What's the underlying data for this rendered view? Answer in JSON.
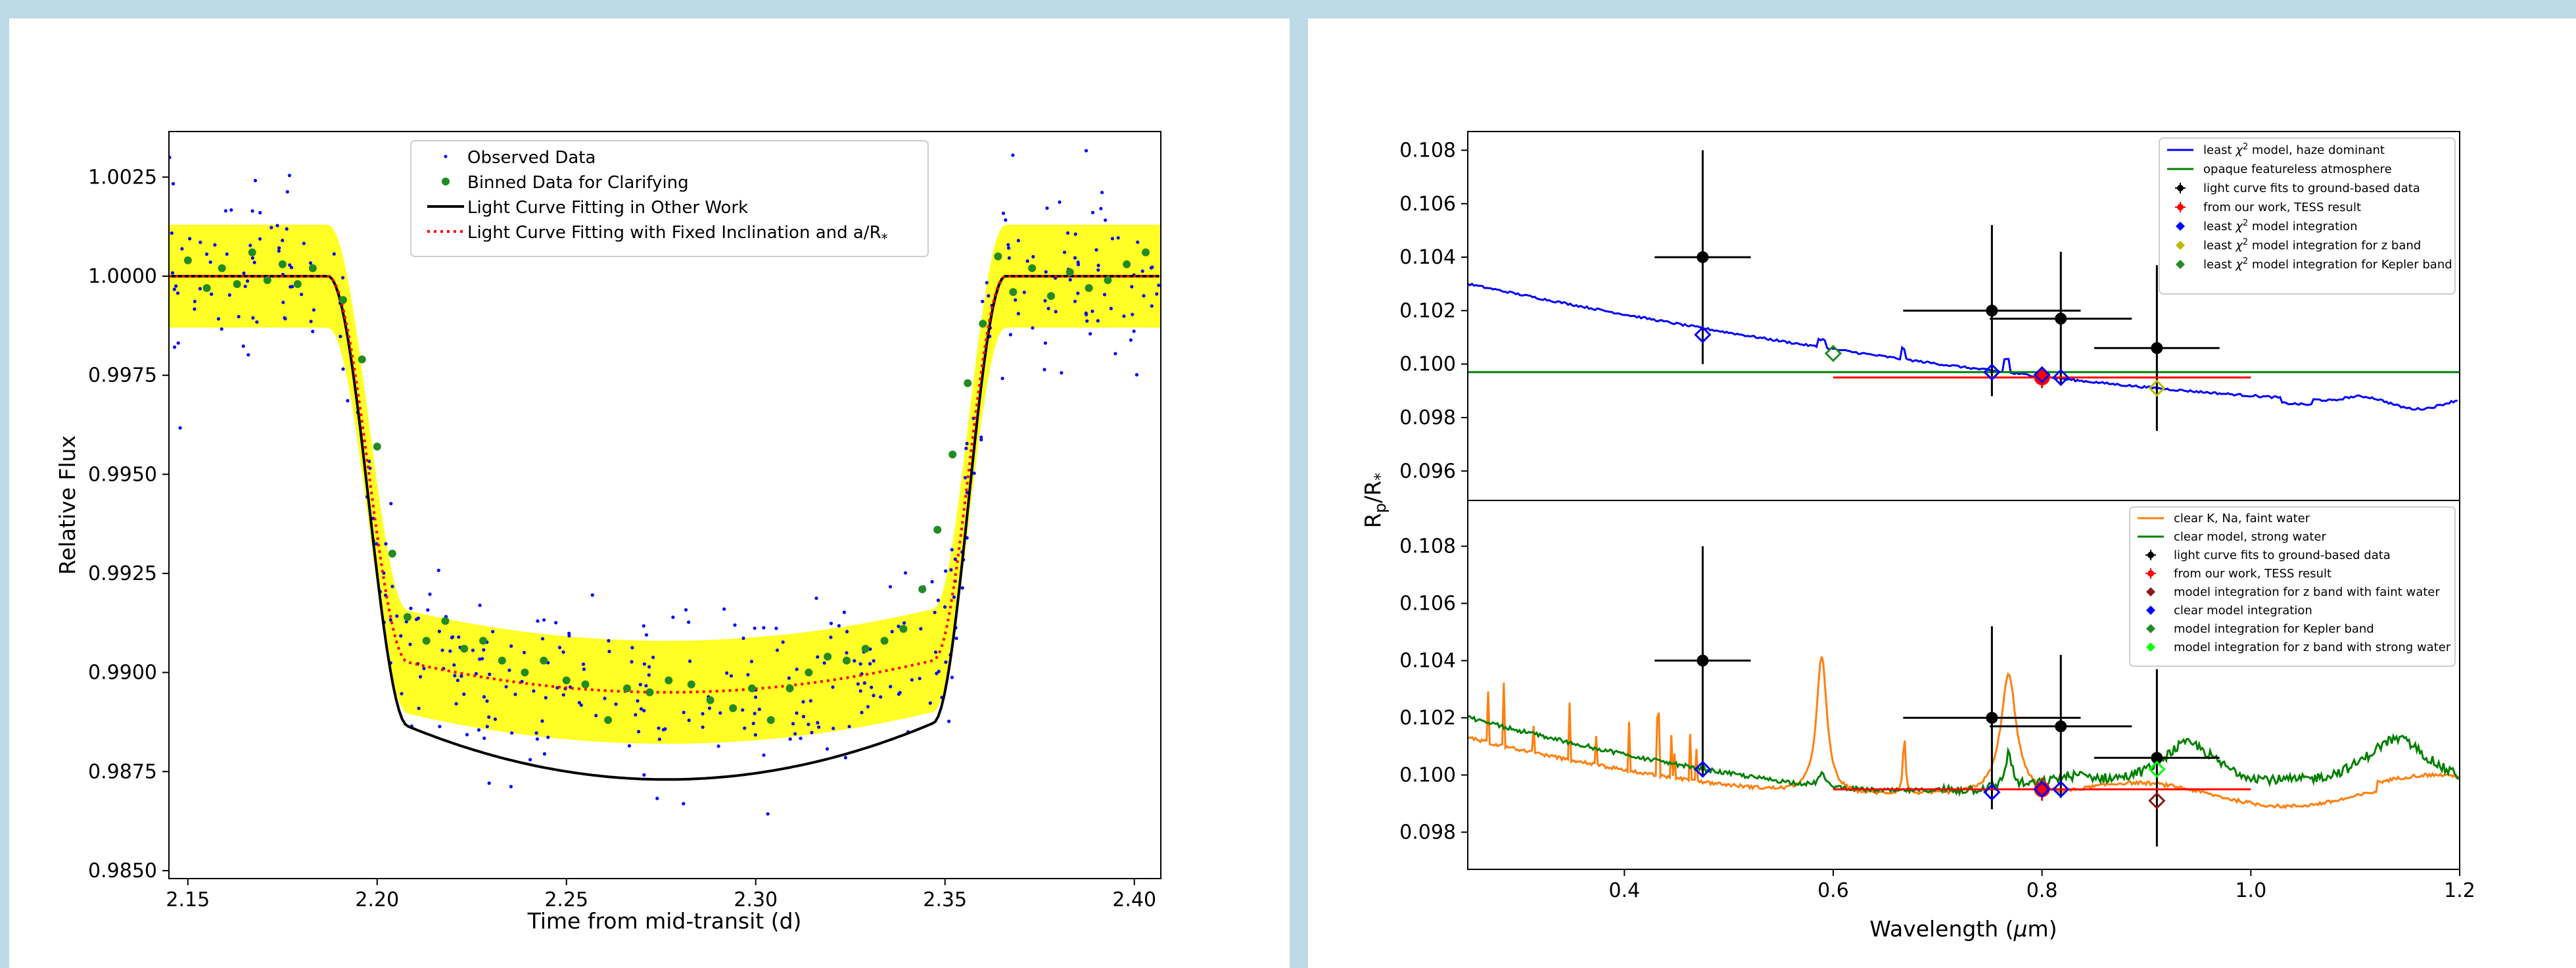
{
  "chart_data": [
    {
      "type": "scatter",
      "xlabel": "Time from mid-transit (d)",
      "ylabel": "Relative Flux",
      "xlim": [
        2.145,
        2.407
      ],
      "ylim": [
        0.9848,
        1.00365
      ],
      "xticks": [
        "2.15",
        "2.20",
        "2.25",
        "2.30",
        "2.35",
        "2.40"
      ],
      "xtick_values": [
        2.15,
        2.2,
        2.25,
        2.3,
        2.35,
        2.4
      ],
      "yticks": [
        "0.9850",
        "0.9875",
        "0.9900",
        "0.9925",
        "0.9950",
        "0.9975",
        "1.0000",
        "1.0025"
      ],
      "ytick_values": [
        0.985,
        0.9875,
        0.99,
        0.9925,
        0.995,
        0.9975,
        1.0,
        1.0025
      ],
      "legend_position": "top-center",
      "legend": [
        {
          "label": "Observed Data",
          "style": "blue-dot"
        },
        {
          "label": "Binned Data for Clarifying",
          "style": "green-dot"
        },
        {
          "label": "Light Curve Fitting in Other Work",
          "style": "black-line"
        },
        {
          "label": "Light Curve Fitting with Fixed Inclination and a/R",
          "sub": "*",
          "style": "red-dotted"
        }
      ],
      "transit": {
        "t1": 2.187,
        "t2": 2.208,
        "t3": 2.347,
        "t4": 2.366,
        "tmid": 2.2765,
        "depth_other": 0.0127,
        "depth_fixed": 0.0105,
        "curve_other": 0.0023,
        "curve_fixed": 0.0013
      },
      "band_halfwidth": 0.0013,
      "observed_points": 400,
      "observed_scatter": 0.0011,
      "binned_points": [
        [
          2.15,
          1.0004
        ],
        [
          2.155,
          0.9997
        ],
        [
          2.159,
          1.0002
        ],
        [
          2.163,
          0.9998
        ],
        [
          2.167,
          1.0006
        ],
        [
          2.171,
          0.9999
        ],
        [
          2.175,
          1.0003
        ],
        [
          2.179,
          0.9998
        ],
        [
          2.183,
          1.0002
        ],
        [
          2.191,
          0.9994
        ],
        [
          2.196,
          0.9979
        ],
        [
          2.2,
          0.9957
        ],
        [
          2.204,
          0.993
        ],
        [
          2.208,
          0.9914
        ],
        [
          2.213,
          0.9908
        ],
        [
          2.218,
          0.9913
        ],
        [
          2.223,
          0.9906
        ],
        [
          2.228,
          0.9908
        ],
        [
          2.233,
          0.9903
        ],
        [
          2.239,
          0.99
        ],
        [
          2.244,
          0.9903
        ],
        [
          2.25,
          0.9898
        ],
        [
          2.255,
          0.9897
        ],
        [
          2.261,
          0.9888
        ],
        [
          2.266,
          0.9896
        ],
        [
          2.272,
          0.9895
        ],
        [
          2.277,
          0.9898
        ],
        [
          2.283,
          0.9897
        ],
        [
          2.288,
          0.9893
        ],
        [
          2.294,
          0.9891
        ],
        [
          2.299,
          0.9896
        ],
        [
          2.304,
          0.9888
        ],
        [
          2.309,
          0.9896
        ],
        [
          2.314,
          0.99
        ],
        [
          2.319,
          0.9904
        ],
        [
          2.324,
          0.9903
        ],
        [
          2.329,
          0.9906
        ],
        [
          2.334,
          0.9908
        ],
        [
          2.339,
          0.9911
        ],
        [
          2.344,
          0.9921
        ],
        [
          2.348,
          0.9936
        ],
        [
          2.352,
          0.9955
        ],
        [
          2.356,
          0.9973
        ],
        [
          2.36,
          0.9988
        ],
        [
          2.364,
          1.0005
        ],
        [
          2.368,
          0.9996
        ],
        [
          2.373,
          1.0002
        ],
        [
          2.378,
          0.9995
        ],
        [
          2.383,
          1.0001
        ],
        [
          2.388,
          0.9997
        ],
        [
          2.393,
          0.9999
        ],
        [
          2.398,
          1.0003
        ],
        [
          2.403,
          1.0006
        ]
      ]
    },
    {
      "type": "line",
      "xlabel": "Wavelength (",
      "xlabel_mu": "μ",
      "xlabel_end": "m)",
      "ylabel_main": "R",
      "ylabel_sub_p": "p",
      "ylabel_mid": "/R",
      "ylabel_sub_star": "*",
      "xlim": [
        0.25,
        1.2
      ],
      "xticks": [
        "0.4",
        "0.6",
        "0.8",
        "1.0",
        "1.2"
      ],
      "xtick_values": [
        0.4,
        0.6,
        0.8,
        1.0,
        1.2
      ],
      "panels": [
        {
          "ylim": [
            0.0949,
            0.1087
          ],
          "yticks": [
            "0.096",
            "0.098",
            "0.100",
            "0.102",
            "0.104",
            "0.106",
            "0.108"
          ],
          "ytick_values": [
            0.096,
            0.098,
            0.1,
            0.102,
            0.104,
            0.106,
            0.108
          ],
          "legend_position": "upper-right",
          "legend": [
            {
              "pre": "least ",
              "chi": "χ",
              "sup": "2",
              "post": " model, haze dominant",
              "color": "#0000ff",
              "style": "line"
            },
            {
              "pre": "opaque featureless atmosphere",
              "color": "#008000",
              "style": "line"
            },
            {
              "pre": "light curve fits to ground-based data",
              "color": "#000000",
              "style": "errorbar"
            },
            {
              "pre": "from our work, TESS result",
              "color": "#ff0000",
              "style": "errorbar"
            },
            {
              "pre": "least ",
              "chi": "χ",
              "sup": "2",
              "post": " model integration",
              "color": "#0000ff",
              "style": "diamond"
            },
            {
              "pre": "least ",
              "chi": "χ",
              "sup": "2",
              "post": " model integration for z band",
              "color": "#bbbb00",
              "style": "diamond"
            },
            {
              "pre": "least ",
              "chi": "χ",
              "sup": "2",
              "post": " model integration for Kepler band",
              "color": "#228b22",
              "style": "diamond"
            }
          ],
          "haze_model": {
            "color": "#0000ff",
            "start": 0.103,
            "end": 0.0985
          },
          "flat_model": {
            "color": "#008000",
            "value": 0.0997
          },
          "ground_points": [
            {
              "x": 0.475,
              "y": 0.104,
              "xerr": 0.046,
              "yerr": 0.004
            },
            {
              "x": 0.752,
              "y": 0.102,
              "xerr": 0.085,
              "yerr": 0.0032
            },
            {
              "x": 0.818,
              "y": 0.1017,
              "xerr": 0.068,
              "yerr": 0.0025
            },
            {
              "x": 0.91,
              "y": 0.1006,
              "xerr": 0.06,
              "yerr": 0.0031
            }
          ],
          "tess_point": {
            "x": 0.8,
            "y": 0.0995,
            "xerr": 0.2,
            "yerr": 0.0004
          },
          "integrated": [
            {
              "x": 0.475,
              "y": 0.1011,
              "color": "#0000ff"
            },
            {
              "x": 0.6,
              "y": 0.1004,
              "color": "#228b22"
            },
            {
              "x": 0.752,
              "y": 0.0997,
              "color": "#0000ff"
            },
            {
              "x": 0.8,
              "y": 0.0996,
              "color": "#0000ff"
            },
            {
              "x": 0.818,
              "y": 0.0995,
              "color": "#0000ff"
            },
            {
              "x": 0.91,
              "y": 0.0991,
              "color": "#bbbb00"
            }
          ]
        },
        {
          "ylim": [
            0.0967,
            0.1096
          ],
          "yticks": [
            "0.098",
            "0.100",
            "0.102",
            "0.104",
            "0.106",
            "0.108"
          ],
          "ytick_values": [
            0.098,
            0.1,
            0.102,
            0.104,
            0.106,
            0.108
          ],
          "legend_position": "upper-right",
          "legend": [
            {
              "pre": "clear K, Na, faint water",
              "color": "#ff7f0e",
              "style": "line"
            },
            {
              "pre": "clear model, strong water",
              "color": "#008000",
              "style": "line"
            },
            {
              "pre": "light curve fits to ground-based data",
              "color": "#000000",
              "style": "errorbar"
            },
            {
              "pre": "from our work, TESS result",
              "color": "#ff0000",
              "style": "errorbar"
            },
            {
              "pre": "model integration for z band with faint water",
              "color": "#8b1a1a",
              "style": "diamond"
            },
            {
              "pre": "clear model integration",
              "color": "#0000ff",
              "style": "diamond"
            },
            {
              "pre": "model integration for Kepler band",
              "color": "#228b22",
              "style": "diamond"
            },
            {
              "pre": "model integration for z band with strong water",
              "color": "#00ff00",
              "style": "diamond"
            }
          ],
          "ground_points": [
            {
              "x": 0.475,
              "y": 0.104,
              "xerr": 0.046,
              "yerr": 0.004
            },
            {
              "x": 0.752,
              "y": 0.102,
              "xerr": 0.085,
              "yerr": 0.0032
            },
            {
              "x": 0.818,
              "y": 0.1017,
              "xerr": 0.068,
              "yerr": 0.0025
            },
            {
              "x": 0.91,
              "y": 0.1006,
              "xerr": 0.06,
              "yerr": 0.0031
            }
          ],
          "tess_point": {
            "x": 0.8,
            "y": 0.0995,
            "xerr": 0.2,
            "yerr": 0.0004
          },
          "integrated": [
            {
              "x": 0.475,
              "y": 0.1002,
              "color": "#0000ff"
            },
            {
              "x": 0.752,
              "y": 0.0994,
              "color": "#0000ff"
            },
            {
              "x": 0.8,
              "y": 0.0995,
              "color": "#0000ff"
            },
            {
              "x": 0.818,
              "y": 0.0995,
              "color": "#0000ff"
            },
            {
              "x": 0.91,
              "y": 0.0991,
              "color": "#8b1a1a"
            },
            {
              "x": 0.91,
              "y": 0.1002,
              "color": "#00ff00"
            }
          ]
        }
      ]
    }
  ]
}
